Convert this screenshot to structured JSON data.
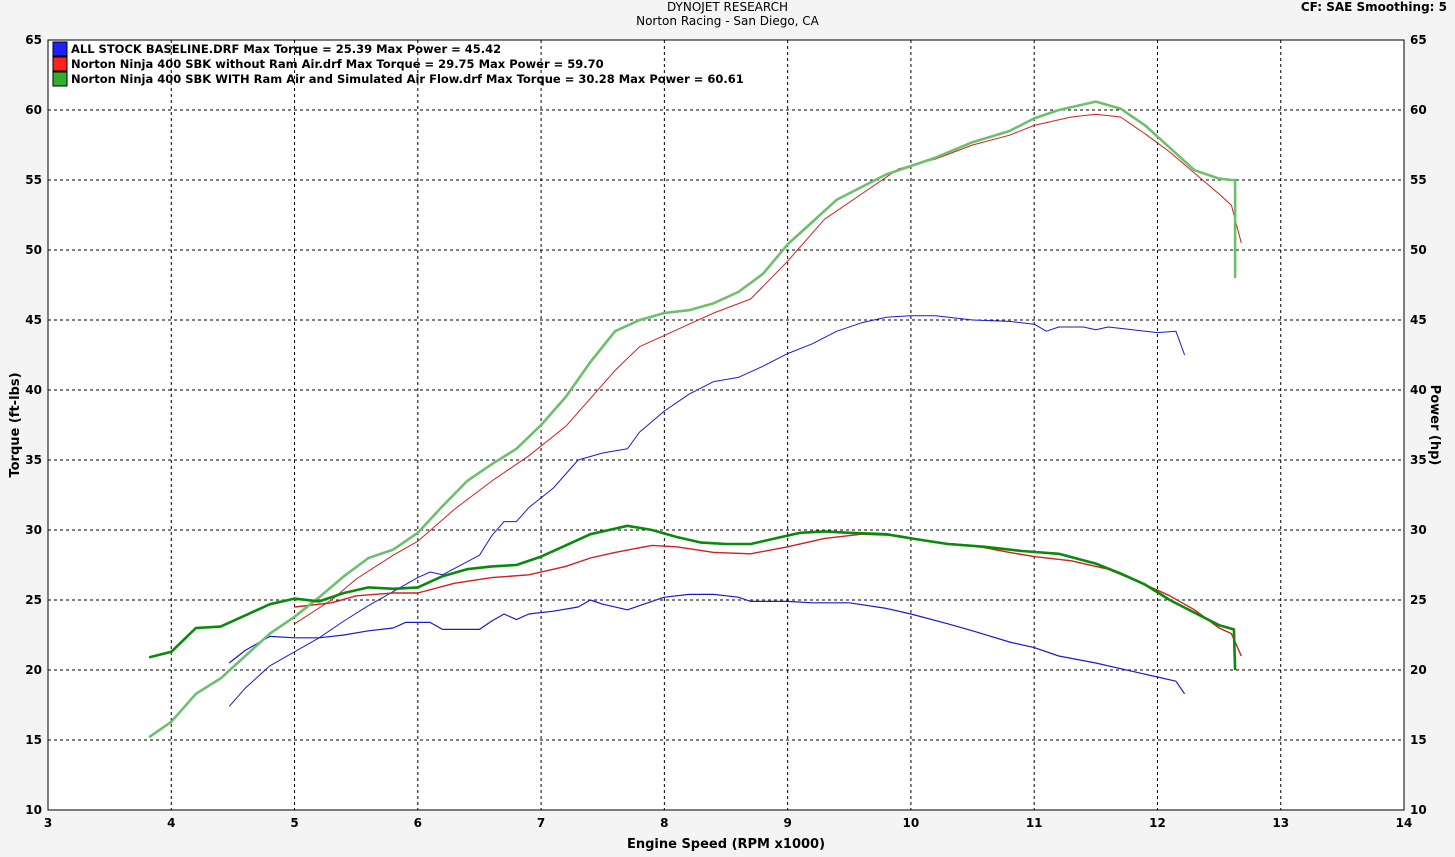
{
  "header": {
    "title": "DYNOJET RESEARCH",
    "subtitle": "Norton Racing - San Diego, CA",
    "cf_info": "CF: SAE  Smoothing: 5"
  },
  "chart_data": {
    "type": "line",
    "xlabel": "Engine Speed (RPM x1000)",
    "ylabel_left": "Torque (ft-lbs)",
    "ylabel_right": "Power (hp)",
    "xlim": [
      3,
      14
    ],
    "ylim": [
      10,
      65
    ],
    "x_ticks": [
      "3",
      "4",
      "5",
      "6",
      "7",
      "8",
      "9",
      "10",
      "11",
      "12",
      "13",
      "14"
    ],
    "y_ticks": [
      "10",
      "15",
      "20",
      "25",
      "30",
      "35",
      "40",
      "45",
      "50",
      "55",
      "60",
      "65"
    ],
    "grid": true,
    "legend_position": "top-left",
    "background": "#ffffff",
    "series": [
      {
        "legend": "ALL STOCK BASELINE.DRF Max Torque = 25.39 Max Power = 45.42",
        "color": "#1a1ad0",
        "swatch": "#2020ff",
        "torque": [
          [
            4.47,
            20.5
          ],
          [
            4.6,
            21.4
          ],
          [
            4.8,
            22.4
          ],
          [
            5.0,
            22.3
          ],
          [
            5.2,
            22.3
          ],
          [
            5.4,
            22.5
          ],
          [
            5.6,
            22.8
          ],
          [
            5.8,
            23.0
          ],
          [
            5.9,
            23.4
          ],
          [
            6.1,
            23.4
          ],
          [
            6.2,
            22.9
          ],
          [
            6.5,
            22.9
          ],
          [
            6.6,
            23.5
          ],
          [
            6.7,
            24.0
          ],
          [
            6.8,
            23.6
          ],
          [
            6.9,
            24.0
          ],
          [
            7.1,
            24.2
          ],
          [
            7.3,
            24.5
          ],
          [
            7.4,
            25.0
          ],
          [
            7.5,
            24.7
          ],
          [
            7.7,
            24.3
          ],
          [
            7.8,
            24.6
          ],
          [
            8.0,
            25.2
          ],
          [
            8.2,
            25.4
          ],
          [
            8.4,
            25.4
          ],
          [
            8.6,
            25.2
          ],
          [
            8.7,
            24.9
          ],
          [
            9.0,
            24.9
          ],
          [
            9.2,
            24.8
          ],
          [
            9.5,
            24.8
          ],
          [
            9.8,
            24.4
          ],
          [
            10.0,
            24.0
          ],
          [
            10.3,
            23.3
          ],
          [
            10.5,
            22.8
          ],
          [
            10.8,
            22.0
          ],
          [
            11.0,
            21.6
          ],
          [
            11.2,
            21.0
          ],
          [
            11.5,
            20.5
          ],
          [
            11.8,
            19.9
          ],
          [
            12.0,
            19.5
          ],
          [
            12.15,
            19.2
          ],
          [
            12.22,
            18.3
          ]
        ],
        "power": [
          [
            4.47,
            17.4
          ],
          [
            4.6,
            18.7
          ],
          [
            4.8,
            20.3
          ],
          [
            5.0,
            21.3
          ],
          [
            5.2,
            22.3
          ],
          [
            5.4,
            23.5
          ],
          [
            5.6,
            24.6
          ],
          [
            5.8,
            25.6
          ],
          [
            6.0,
            26.6
          ],
          [
            6.1,
            27.0
          ],
          [
            6.2,
            26.8
          ],
          [
            6.5,
            28.2
          ],
          [
            6.6,
            29.6
          ],
          [
            6.7,
            30.6
          ],
          [
            6.8,
            30.6
          ],
          [
            6.9,
            31.6
          ],
          [
            7.1,
            33.0
          ],
          [
            7.3,
            35.0
          ],
          [
            7.5,
            35.5
          ],
          [
            7.7,
            35.8
          ],
          [
            7.8,
            37.0
          ],
          [
            8.0,
            38.5
          ],
          [
            8.2,
            39.7
          ],
          [
            8.4,
            40.6
          ],
          [
            8.6,
            40.9
          ],
          [
            8.8,
            41.7
          ],
          [
            9.0,
            42.6
          ],
          [
            9.2,
            43.3
          ],
          [
            9.4,
            44.2
          ],
          [
            9.6,
            44.8
          ],
          [
            9.8,
            45.2
          ],
          [
            10.0,
            45.3
          ],
          [
            10.2,
            45.3
          ],
          [
            10.5,
            45.0
          ],
          [
            10.8,
            44.9
          ],
          [
            11.0,
            44.7
          ],
          [
            11.1,
            44.2
          ],
          [
            11.2,
            44.5
          ],
          [
            11.4,
            44.5
          ],
          [
            11.5,
            44.3
          ],
          [
            11.6,
            44.5
          ],
          [
            11.8,
            44.3
          ],
          [
            12.0,
            44.1
          ],
          [
            12.15,
            44.2
          ],
          [
            12.22,
            42.5
          ]
        ]
      },
      {
        "legend": "Norton Ninja 400 SBK without Ram Air.drf Max Torque = 29.75 Max Power = 59.70",
        "color": "#d02020",
        "swatch": "#ff2020",
        "torque": [
          [
            5.0,
            24.5
          ],
          [
            5.3,
            24.8
          ],
          [
            5.5,
            25.3
          ],
          [
            5.8,
            25.5
          ],
          [
            6.0,
            25.5
          ],
          [
            6.3,
            26.2
          ],
          [
            6.6,
            26.6
          ],
          [
            6.9,
            26.8
          ],
          [
            7.2,
            27.4
          ],
          [
            7.4,
            28.0
          ],
          [
            7.6,
            28.4
          ],
          [
            7.9,
            28.9
          ],
          [
            8.1,
            28.8
          ],
          [
            8.4,
            28.4
          ],
          [
            8.7,
            28.3
          ],
          [
            9.0,
            28.8
          ],
          [
            9.3,
            29.4
          ],
          [
            9.6,
            29.7
          ],
          [
            9.9,
            29.6
          ],
          [
            10.2,
            29.1
          ],
          [
            10.5,
            28.9
          ],
          [
            10.8,
            28.4
          ],
          [
            11.0,
            28.1
          ],
          [
            11.3,
            27.8
          ],
          [
            11.6,
            27.2
          ],
          [
            11.9,
            26.1
          ],
          [
            12.1,
            25.3
          ],
          [
            12.3,
            24.3
          ],
          [
            12.5,
            23.0
          ],
          [
            12.6,
            22.6
          ],
          [
            12.68,
            21.0
          ]
        ],
        "power": [
          [
            5.0,
            23.3
          ],
          [
            5.3,
            25.0
          ],
          [
            5.5,
            26.5
          ],
          [
            5.8,
            28.2
          ],
          [
            6.0,
            29.2
          ],
          [
            6.3,
            31.5
          ],
          [
            6.6,
            33.5
          ],
          [
            6.9,
            35.3
          ],
          [
            7.2,
            37.4
          ],
          [
            7.4,
            39.4
          ],
          [
            7.6,
            41.4
          ],
          [
            7.8,
            43.1
          ],
          [
            8.0,
            43.9
          ],
          [
            8.2,
            44.7
          ],
          [
            8.4,
            45.5
          ],
          [
            8.7,
            46.5
          ],
          [
            9.0,
            49.2
          ],
          [
            9.3,
            52.2
          ],
          [
            9.6,
            54.0
          ],
          [
            9.9,
            55.8
          ],
          [
            10.2,
            56.5
          ],
          [
            10.5,
            57.5
          ],
          [
            10.8,
            58.2
          ],
          [
            11.0,
            58.9
          ],
          [
            11.3,
            59.5
          ],
          [
            11.5,
            59.7
          ],
          [
            11.7,
            59.5
          ],
          [
            11.9,
            58.3
          ],
          [
            12.1,
            57.0
          ],
          [
            12.3,
            55.5
          ],
          [
            12.5,
            54.0
          ],
          [
            12.6,
            53.2
          ],
          [
            12.68,
            50.5
          ]
        ]
      },
      {
        "legend": "Norton Ninja 400 SBK WITH Ram Air and Simulated Air Flow.drf Max Torque = 30.28 Max Power = 60.61",
        "color": "#0a8a0a",
        "power_color": "#6cc06c",
        "swatch": "#30b030",
        "torque": [
          [
            3.82,
            20.9
          ],
          [
            4.0,
            21.3
          ],
          [
            4.2,
            23.0
          ],
          [
            4.4,
            23.1
          ],
          [
            4.6,
            23.9
          ],
          [
            4.8,
            24.7
          ],
          [
            5.0,
            25.1
          ],
          [
            5.2,
            24.9
          ],
          [
            5.4,
            25.5
          ],
          [
            5.6,
            25.9
          ],
          [
            5.8,
            25.8
          ],
          [
            6.0,
            25.9
          ],
          [
            6.2,
            26.7
          ],
          [
            6.4,
            27.2
          ],
          [
            6.6,
            27.4
          ],
          [
            6.8,
            27.5
          ],
          [
            7.0,
            28.1
          ],
          [
            7.2,
            28.9
          ],
          [
            7.4,
            29.7
          ],
          [
            7.6,
            30.1
          ],
          [
            7.7,
            30.3
          ],
          [
            7.9,
            30.0
          ],
          [
            8.1,
            29.5
          ],
          [
            8.3,
            29.1
          ],
          [
            8.5,
            29.0
          ],
          [
            8.7,
            29.0
          ],
          [
            8.9,
            29.4
          ],
          [
            9.1,
            29.8
          ],
          [
            9.3,
            29.9
          ],
          [
            9.5,
            29.8
          ],
          [
            9.8,
            29.7
          ],
          [
            10.0,
            29.4
          ],
          [
            10.3,
            29.0
          ],
          [
            10.6,
            28.8
          ],
          [
            10.9,
            28.5
          ],
          [
            11.2,
            28.3
          ],
          [
            11.5,
            27.6
          ],
          [
            11.7,
            26.9
          ],
          [
            11.9,
            26.1
          ],
          [
            12.1,
            25.0
          ],
          [
            12.3,
            24.1
          ],
          [
            12.5,
            23.2
          ],
          [
            12.62,
            22.9
          ],
          [
            12.63,
            20.0
          ]
        ],
        "power": [
          [
            3.82,
            15.2
          ],
          [
            4.0,
            16.3
          ],
          [
            4.2,
            18.3
          ],
          [
            4.4,
            19.4
          ],
          [
            4.6,
            21.0
          ],
          [
            4.8,
            22.6
          ],
          [
            5.0,
            23.8
          ],
          [
            5.2,
            25.2
          ],
          [
            5.4,
            26.7
          ],
          [
            5.6,
            28.0
          ],
          [
            5.8,
            28.6
          ],
          [
            6.0,
            29.8
          ],
          [
            6.2,
            31.7
          ],
          [
            6.4,
            33.5
          ],
          [
            6.6,
            34.7
          ],
          [
            6.8,
            35.8
          ],
          [
            7.0,
            37.5
          ],
          [
            7.2,
            39.5
          ],
          [
            7.4,
            42.0
          ],
          [
            7.6,
            44.2
          ],
          [
            7.8,
            45.0
          ],
          [
            8.0,
            45.5
          ],
          [
            8.2,
            45.7
          ],
          [
            8.4,
            46.2
          ],
          [
            8.6,
            47.0
          ],
          [
            8.8,
            48.3
          ],
          [
            9.0,
            50.4
          ],
          [
            9.2,
            52.0
          ],
          [
            9.4,
            53.6
          ],
          [
            9.6,
            54.5
          ],
          [
            9.8,
            55.4
          ],
          [
            10.0,
            56.0
          ],
          [
            10.2,
            56.6
          ],
          [
            10.5,
            57.7
          ],
          [
            10.8,
            58.5
          ],
          [
            11.0,
            59.4
          ],
          [
            11.2,
            60.0
          ],
          [
            11.5,
            60.6
          ],
          [
            11.7,
            60.1
          ],
          [
            11.9,
            58.9
          ],
          [
            12.1,
            57.3
          ],
          [
            12.3,
            55.7
          ],
          [
            12.5,
            55.1
          ],
          [
            12.6,
            55.0
          ],
          [
            12.63,
            55.0
          ],
          [
            12.63,
            48.0
          ]
        ]
      }
    ]
  }
}
